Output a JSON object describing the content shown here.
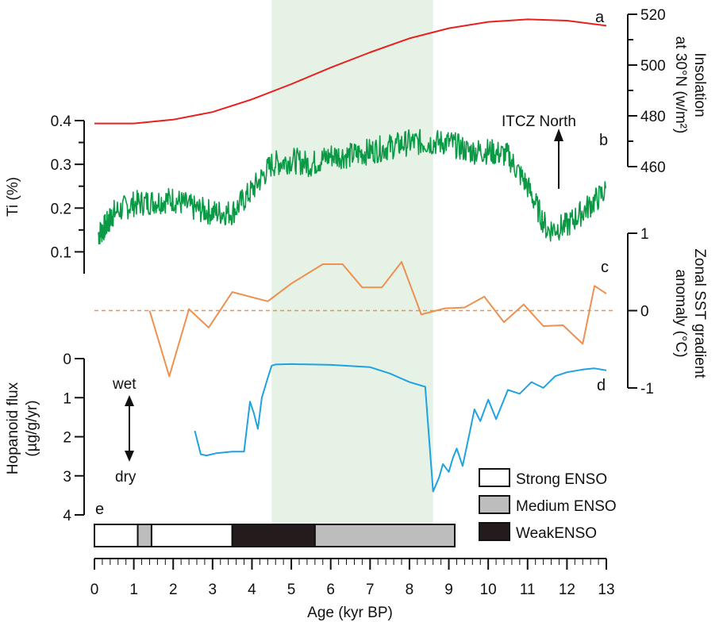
{
  "colors": {
    "insolation": "#e8201f",
    "ti": "#0a9a45",
    "sst": "#ee9050",
    "hopanoid": "#1fa3e0",
    "shade": "#e6f2e6",
    "axis": "#111111"
  },
  "annotations": {
    "itcz": "ITCZ North",
    "wet": "wet",
    "dry": "dry"
  },
  "chart_data": {
    "type": "line",
    "shared_x": {
      "label": "Age (kyr BP)",
      "range": [
        0,
        13
      ],
      "ticks": [
        "0",
        "1",
        "2",
        "3",
        "4",
        "5",
        "6",
        "7",
        "8",
        "9",
        "10",
        "11",
        "12",
        "13"
      ]
    },
    "shaded_interval": [
      4.5,
      8.6
    ],
    "panels": [
      {
        "id": "a",
        "label": "a",
        "ylabel": "Insolation at 30°N (w/m²)",
        "ylabel_line1": "Insolation",
        "ylabel_line2": "at 30°N (w/m²)",
        "axis_side": "right",
        "ylim": [
          460,
          520
        ],
        "yticks": [
          "460",
          "480",
          "500",
          "520"
        ],
        "x": [
          0,
          0.5,
          1,
          2,
          3,
          4,
          5,
          6,
          7,
          8,
          9,
          10,
          11,
          12,
          13
        ],
        "y": [
          477,
          477,
          477,
          478.5,
          481.5,
          486.5,
          492.5,
          499,
          505,
          510.5,
          514.5,
          517,
          518,
          517.5,
          515.5
        ]
      },
      {
        "id": "b",
        "label": "b",
        "ylabel": "Ti (%)",
        "axis_side": "left",
        "ylim": [
          0.05,
          0.4
        ],
        "yticks": [
          "0.1",
          "0.2",
          "0.3",
          "0.4"
        ],
        "x": [
          0.1,
          0.3,
          0.5,
          1,
          1.5,
          2,
          2.5,
          3,
          3.5,
          4,
          4.5,
          5,
          5.5,
          6,
          6.5,
          7,
          7.5,
          8,
          8.5,
          9,
          9.5,
          10,
          10.5,
          11,
          11.5,
          12,
          12.5,
          13
        ],
        "y": [
          0.14,
          0.16,
          0.19,
          0.21,
          0.215,
          0.22,
          0.2,
          0.19,
          0.19,
          0.24,
          0.3,
          0.31,
          0.3,
          0.32,
          0.32,
          0.33,
          0.34,
          0.35,
          0.35,
          0.35,
          0.33,
          0.33,
          0.32,
          0.25,
          0.15,
          0.16,
          0.2,
          0.24
        ]
      },
      {
        "id": "c",
        "label": "c",
        "ylabel": "Zonal SST gradient anomaly (°C)",
        "ylabel_line1": "Zonal SST gradient",
        "ylabel_line2": "anomaly  (°C)",
        "axis_side": "right",
        "ylim": [
          -1,
          1
        ],
        "yticks": [
          "-1",
          "0",
          "1"
        ],
        "x": [
          1.4,
          1.9,
          2.4,
          2.9,
          3.5,
          4.4,
          5,
          5.8,
          6.3,
          6.8,
          7.3,
          7.8,
          8.3,
          8.9,
          9.4,
          9.9,
          10.4,
          10.9,
          11.4,
          11.9,
          12.4,
          12.7,
          13
        ],
        "y": [
          0,
          -0.85,
          0.02,
          -0.22,
          0.24,
          0.12,
          0.35,
          0.6,
          0.6,
          0.3,
          0.3,
          0.63,
          -0.05,
          0.03,
          0.04,
          0.18,
          -0.15,
          0.08,
          -0.2,
          -0.19,
          -0.43,
          0.32,
          0.22
        ]
      },
      {
        "id": "d",
        "label": "d",
        "ylabel": "Hopanoid flux (µg/g/yr)",
        "ylabel_line1": "Hopanoid flux",
        "ylabel_line2": "(µg/g/yr)",
        "axis_side": "left",
        "ylim": [
          0,
          4
        ],
        "inverted": true,
        "yticks": [
          "0",
          "1",
          "2",
          "3",
          "4"
        ],
        "x": [
          2.55,
          2.7,
          2.85,
          3.1,
          3.5,
          3.8,
          3.95,
          4.05,
          4.15,
          4.25,
          4.4,
          4.5,
          4.6,
          5,
          6,
          7,
          7.5,
          8,
          8.4,
          8.6,
          8.75,
          8.85,
          9.0,
          9.1,
          9.2,
          9.35,
          9.55,
          9.65,
          9.8,
          10.0,
          10.2,
          10.5,
          10.8,
          11.1,
          11.4,
          11.7,
          12.0,
          12.4,
          12.7,
          13.0
        ],
        "y": [
          1.85,
          2.45,
          2.48,
          2.42,
          2.38,
          2.38,
          1.1,
          1.4,
          1.8,
          1.0,
          0.5,
          0.18,
          0.15,
          0.14,
          0.16,
          0.22,
          0.38,
          0.6,
          0.72,
          3.4,
          3.05,
          2.7,
          2.9,
          2.55,
          2.3,
          2.75,
          1.8,
          1.3,
          1.6,
          1.05,
          1.55,
          0.8,
          0.9,
          0.6,
          0.75,
          0.45,
          0.35,
          0.28,
          0.25,
          0.3
        ]
      },
      {
        "id": "e",
        "label": "e",
        "type": "segments",
        "segments": [
          {
            "start": 0,
            "end": 1.1,
            "class": "strong"
          },
          {
            "start": 1.1,
            "end": 1.45,
            "class": "medium"
          },
          {
            "start": 1.45,
            "end": 3.5,
            "class": "strong"
          },
          {
            "start": 3.5,
            "end": 5.6,
            "class": "weak"
          },
          {
            "start": 5.6,
            "end": 9.15,
            "class": "medium"
          }
        ],
        "legend": [
          {
            "class": "strong",
            "label": "Strong ENSO",
            "fill": "#ffffff"
          },
          {
            "class": "medium",
            "label": "Medium ENSO",
            "fill": "#bdbdbd"
          },
          {
            "class": "weak",
            "label": "WeakENSO",
            "fill": "#241c1c"
          }
        ]
      }
    ]
  }
}
